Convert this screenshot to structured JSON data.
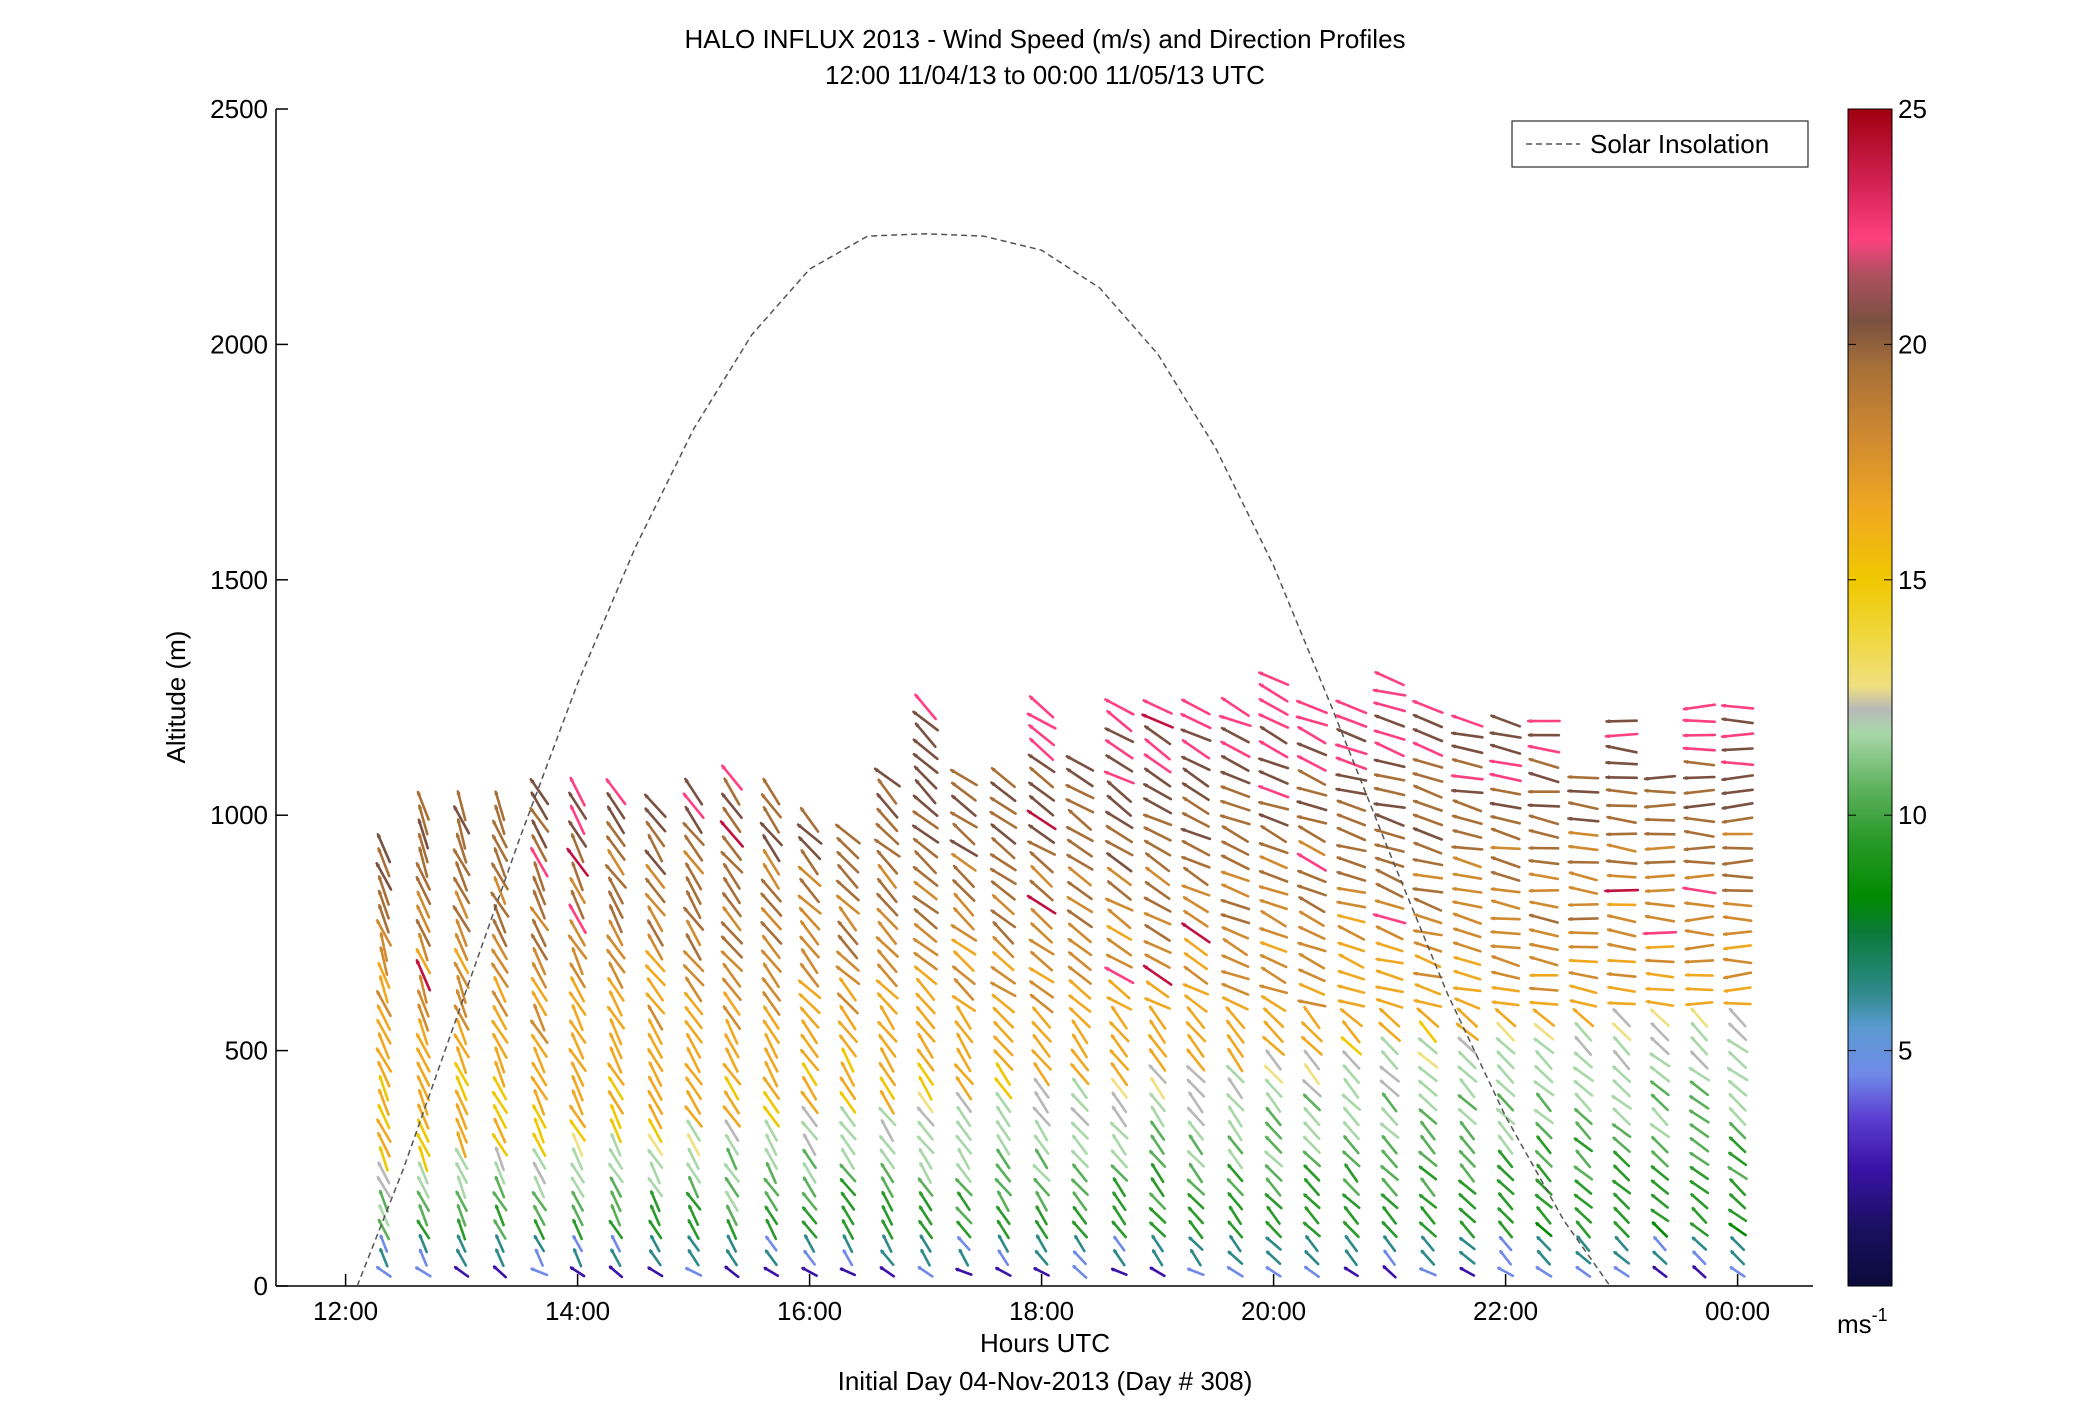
{
  "chart_data": {
    "type": "quiver",
    "title": "HALO INFLUX 2013 - Wind Speed (m/s) and Direction Profiles",
    "subtitle": "12:00 11/04/13 to 00:00 11/05/13  UTC",
    "xlabel": "Hours UTC",
    "xlabel2": "Initial Day 04-Nov-2013 (Day # 308)",
    "ylabel": "Altitude (m)",
    "xlim": [
      11.4,
      24.65
    ],
    "ylim": [
      0,
      2500
    ],
    "x_ticks": [
      12,
      14,
      16,
      18,
      20,
      22,
      24
    ],
    "x_tick_labels": [
      "12:00",
      "14:00",
      "16:00",
      "18:00",
      "20:00",
      "22:00",
      "00:00"
    ],
    "y_ticks": [
      0,
      500,
      1000,
      1500,
      2000,
      2500
    ],
    "y_tick_labels": [
      "0",
      "500",
      "1000",
      "1500",
      "2000",
      "2500"
    ],
    "legend": {
      "label": "Solar Insolation",
      "location": "top-right"
    },
    "colorbar": {
      "ticks": [
        5,
        10,
        15,
        20,
        25
      ],
      "tick_labels": [
        "5",
        "10",
        "15",
        "20",
        "25"
      ],
      "range": [
        0,
        25
      ],
      "unit_base": "ms",
      "unit_exp": "-1"
    },
    "solar_insolation_curve": {
      "style": "dashed",
      "color": "#555555",
      "x": [
        12.1,
        12.5,
        13.0,
        13.5,
        14.0,
        14.5,
        15.0,
        15.5,
        16.0,
        16.5,
        17.0,
        17.5,
        18.0,
        18.5,
        19.0,
        19.5,
        20.0,
        20.5,
        21.0,
        21.5,
        22.0,
        22.5,
        22.9
      ],
      "y": [
        0,
        250,
        600,
        950,
        1280,
        1570,
        1820,
        2020,
        2160,
        2230,
        2235,
        2230,
        2200,
        2120,
        1980,
        1780,
        1530,
        1230,
        920,
        620,
        360,
        140,
        0
      ]
    },
    "profile_times": [
      12.33,
      12.67,
      13.0,
      13.33,
      13.67,
      14.0,
      14.33,
      14.67,
      15.0,
      15.33,
      15.67,
      16.0,
      16.33,
      16.67,
      17.0,
      17.33,
      17.67,
      18.0,
      18.33,
      18.67,
      19.0,
      19.33,
      19.67,
      20.0,
      20.33,
      20.67,
      21.0,
      21.33,
      21.67,
      22.0,
      22.33,
      22.67,
      23.0,
      23.33,
      23.67,
      24.0
    ],
    "profile_top_altitudes": [
      950,
      1020,
      1020,
      1020,
      1050,
      1060,
      1050,
      1020,
      1050,
      1080,
      1050,
      1000,
      980,
      1100,
      1230,
      1100,
      1100,
      1240,
      1120,
      1240,
      1240,
      1240,
      1240,
      1300,
      1250,
      1250,
      1300,
      1240,
      1200,
      1200,
      1200,
      1100,
      1200,
      1100,
      1240,
      1240
    ],
    "profile_bottom_altitudes": [
      30,
      30,
      30,
      30,
      30,
      30,
      30,
      30,
      30,
      30,
      30,
      30,
      30,
      30,
      30,
      30,
      30,
      30,
      30,
      30,
      30,
      30,
      30,
      30,
      30,
      30,
      30,
      30,
      30,
      30,
      30,
      30,
      30,
      30,
      30,
      30
    ]
  }
}
